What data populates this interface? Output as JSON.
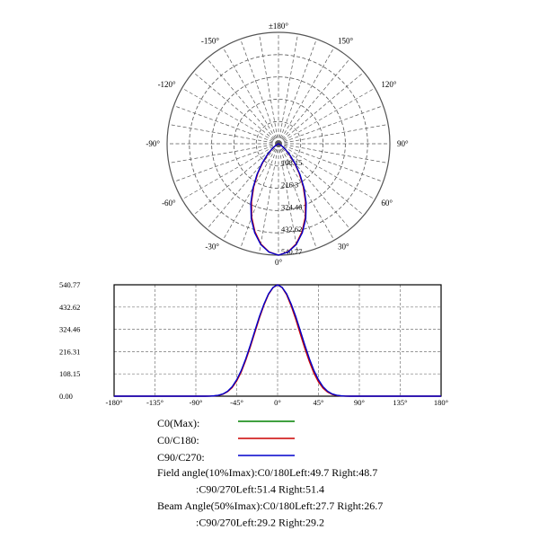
{
  "chart_data": [
    {
      "type": "polar",
      "angle_labels": [
        {
          "deg": 180,
          "text": "±180°"
        },
        {
          "deg": 150,
          "text": "150°"
        },
        {
          "deg": 120,
          "text": "120°"
        },
        {
          "deg": 90,
          "text": "90°"
        },
        {
          "deg": 60,
          "text": "60°"
        },
        {
          "deg": 30,
          "text": "30°"
        },
        {
          "deg": 0,
          "text": "0°"
        },
        {
          "deg": -30,
          "text": "-30°"
        },
        {
          "deg": -60,
          "text": "-60°"
        },
        {
          "deg": -90,
          "text": "-90°"
        },
        {
          "deg": -120,
          "text": "-120°"
        },
        {
          "deg": -150,
          "text": "-150°"
        }
      ],
      "radial_labels": [
        "108.15",
        "216.3",
        "324.46",
        "432.62",
        "540.77"
      ],
      "rmax": 540.77,
      "series": [
        {
          "name": "C0/C180",
          "color": "#cc0000",
          "points": [
            [
              0,
              540.77
            ],
            [
              5,
              527
            ],
            [
              10,
              494
            ],
            [
              15,
              442
            ],
            [
              20,
              380
            ],
            [
              25,
              310
            ],
            [
              30,
              240
            ],
            [
              35,
              175
            ],
            [
              40,
              118
            ],
            [
              45,
              74
            ],
            [
              50,
              42
            ],
            [
              55,
              22
            ],
            [
              60,
              10
            ],
            [
              65,
              4
            ],
            [
              70,
              1.5
            ],
            [
              75,
              0.4
            ],
            [
              80,
              0
            ]
          ]
        },
        {
          "name": "C90/C270",
          "color": "#0000cc",
          "points": [
            [
              0,
              540.77
            ],
            [
              5,
              528
            ],
            [
              10,
              497
            ],
            [
              15,
              447
            ],
            [
              20,
              387
            ],
            [
              25,
              318
            ],
            [
              30,
              248
            ],
            [
              35,
              182
            ],
            [
              40,
              125
            ],
            [
              45,
              80
            ],
            [
              50,
              46
            ],
            [
              55,
              24
            ],
            [
              60,
              11
            ],
            [
              65,
              4.5
            ],
            [
              70,
              1.6
            ],
            [
              75,
              0.4
            ],
            [
              80,
              0
            ]
          ]
        }
      ]
    },
    {
      "type": "line",
      "x_ticks": [
        "-180°",
        "-135°",
        "-90°",
        "-45°",
        "0°",
        "45°",
        "90°",
        "135°",
        "180°"
      ],
      "y_ticks": [
        "540.77",
        "432.62",
        "324.46",
        "216.31",
        "108.15",
        "0.00"
      ],
      "xlim": [
        -180,
        180
      ],
      "ylim": [
        0,
        540.77
      ],
      "series": [
        {
          "name": "C0/C180",
          "color": "#cc0000",
          "x": [
            -180,
            -90,
            -80,
            -75,
            -70,
            -65,
            -60,
            -55,
            -50,
            -45,
            -40,
            -35,
            -30,
            -25,
            -20,
            -15,
            -10,
            -5,
            0,
            5,
            10,
            15,
            20,
            25,
            30,
            35,
            40,
            45,
            50,
            55,
            60,
            65,
            70,
            75,
            80,
            90,
            180
          ],
          "values": [
            0,
            0,
            0,
            0.4,
            1.5,
            4,
            10,
            22,
            42,
            74,
            118,
            175,
            240,
            310,
            380,
            442,
            494,
            527,
            540.77,
            527,
            492,
            438,
            374,
            302,
            232,
            168,
            112,
            69,
            39,
            20,
            9,
            3.5,
            1.2,
            0.3,
            0,
            0,
            0
          ]
        },
        {
          "name": "C90/C270",
          "color": "#0000cc",
          "x": [
            -180,
            -90,
            -80,
            -75,
            -70,
            -65,
            -60,
            -55,
            -50,
            -45,
            -40,
            -35,
            -30,
            -25,
            -20,
            -15,
            -10,
            -5,
            0,
            5,
            10,
            15,
            20,
            25,
            30,
            35,
            40,
            45,
            50,
            55,
            60,
            65,
            70,
            75,
            80,
            90,
            180
          ],
          "values": [
            0,
            0,
            0,
            0.4,
            1.6,
            4.5,
            11,
            24,
            46,
            80,
            125,
            182,
            248,
            318,
            387,
            447,
            497,
            528,
            540.77,
            528,
            497,
            447,
            387,
            318,
            248,
            182,
            125,
            80,
            46,
            24,
            11,
            4.5,
            1.6,
            0.4,
            0,
            0,
            0
          ]
        }
      ]
    }
  ],
  "legend": [
    {
      "label": "C0(Max):",
      "color": "#008000"
    },
    {
      "label": "C0/C180:",
      "color": "#cc0000"
    },
    {
      "label": "C90/C270:",
      "color": "#0000cc"
    }
  ],
  "info_lines": [
    "Field angle(10%Imax):C0/180Left:49.7 Right:48.7",
    ":C90/270Left:51.4 Right:51.4",
    "Beam Angle(50%Imax):C0/180Left:27.7 Right:26.7",
    ":C90/270Left:29.2 Right:29.2"
  ]
}
